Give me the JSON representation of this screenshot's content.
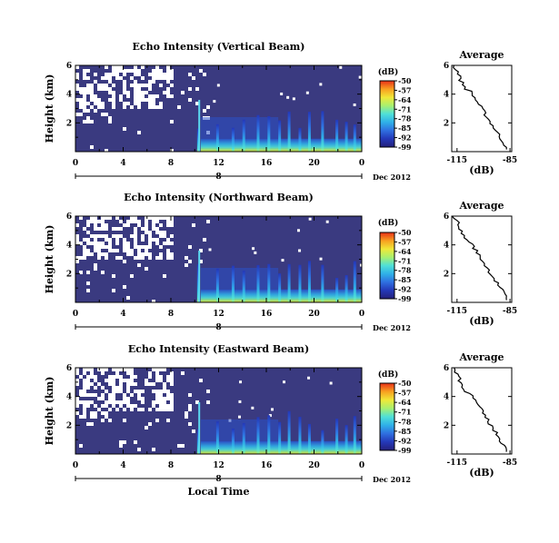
{
  "chart_data": [
    {
      "type": "heatmap",
      "title": "Echo Intensity (Vertical Beam)",
      "ylabel": "Height (km)",
      "xticks": [
        "0",
        "4",
        "8",
        "12",
        "16",
        "20",
        "0"
      ],
      "yticks": [
        "6",
        "4",
        "2"
      ],
      "ylim": [
        0,
        6
      ],
      "xlim": [
        0,
        24
      ],
      "date_marker": "8",
      "date_label": "Dec 2012",
      "colorbar": {
        "label": "(dB)",
        "ticks": [
          "-50",
          "-57",
          "-64",
          "-71",
          "-78",
          "-85",
          "-92",
          "-99"
        ]
      },
      "profile": {
        "title": "Average",
        "xlabel": "(dB)",
        "xticks": [
          "-115",
          "-85"
        ],
        "yticks": [
          "6",
          "4",
          "2"
        ]
      }
    },
    {
      "type": "heatmap",
      "title": "Echo Intensity (Northward Beam)",
      "ylabel": "Height (km)",
      "xticks": [
        "0",
        "4",
        "8",
        "12",
        "16",
        "20",
        "0"
      ],
      "yticks": [
        "6",
        "4",
        "2"
      ],
      "ylim": [
        0,
        6
      ],
      "xlim": [
        0,
        24
      ],
      "date_marker": "8",
      "date_label": "Dec 2012",
      "colorbar": {
        "label": "(dB)",
        "ticks": [
          "-50",
          "-57",
          "-64",
          "-71",
          "-78",
          "-85",
          "-92",
          "-99"
        ]
      },
      "profile": {
        "title": "Average",
        "xlabel": "(dB)",
        "xticks": [
          "-115",
          "-85"
        ],
        "yticks": [
          "6",
          "4",
          "2"
        ]
      }
    },
    {
      "type": "heatmap",
      "title": "Echo Intensity (Eastward Beam)",
      "ylabel": "Height (km)",
      "xticks": [
        "0",
        "4",
        "8",
        "12",
        "16",
        "20",
        "0"
      ],
      "yticks": [
        "6",
        "4",
        "2"
      ],
      "ylim": [
        0,
        6
      ],
      "xlim": [
        0,
        24
      ],
      "date_marker": "8",
      "date_label": "Dec 2012",
      "xlabel": "Local Time",
      "colorbar": {
        "label": "(dB)",
        "ticks": [
          "-50",
          "-57",
          "-64",
          "-71",
          "-78",
          "-85",
          "-92",
          "-99"
        ]
      },
      "profile": {
        "title": "Average",
        "xlabel": "(dB)",
        "xticks": [
          "-115",
          "-85"
        ],
        "yticks": [
          "6",
          "4",
          "2"
        ]
      }
    }
  ],
  "colors": {
    "background_field": "#3a3a80",
    "colormap": [
      "#24207a",
      "#2438b8",
      "#2f6fe0",
      "#2fb0e8",
      "#4fe0d8",
      "#a8f070",
      "#f0e838",
      "#f8a020",
      "#e83018"
    ]
  }
}
